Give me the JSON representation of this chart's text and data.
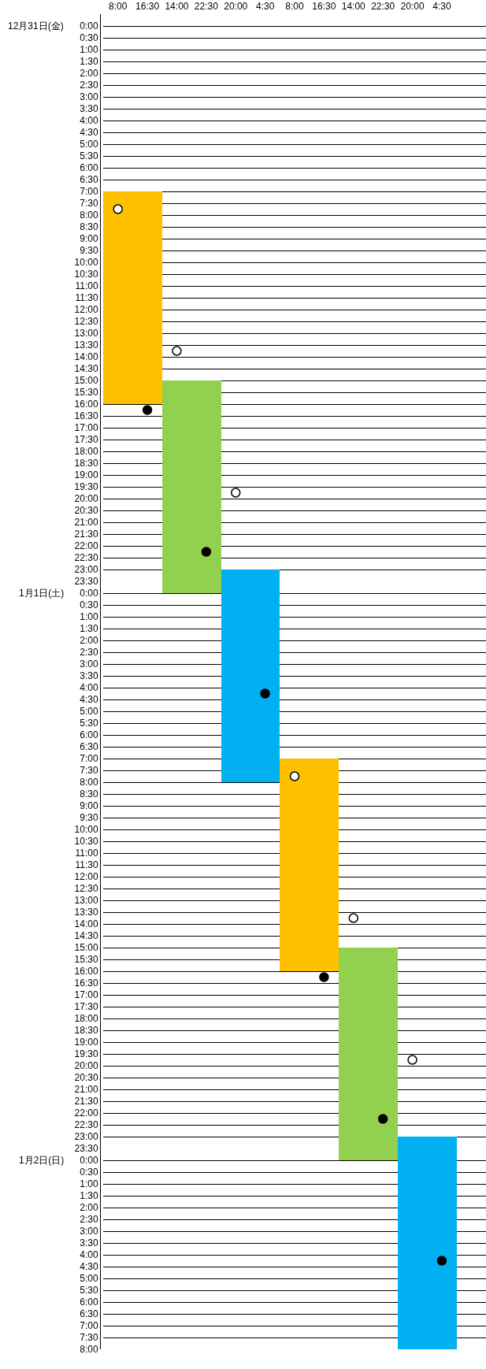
{
  "chart_data": [
    {
      "type": "bar",
      "title": "12月31日(金)",
      "categories": [
        "8:00",
        "16:30",
        "14:00",
        "22:30",
        "20:00",
        "4:30",
        "8:00",
        "16:30",
        "14:00",
        "22:30",
        "20:00",
        "4:30"
      ],
      "series": [
        {
          "values": [
            9,
            9,
            8.5,
            8.5,
            0.5,
            0.5,
            null,
            null,
            null,
            null,
            null,
            null
          ],
          "base": [
            7,
            7,
            15,
            15,
            23,
            23,
            null,
            null,
            null,
            null,
            null,
            null
          ],
          "colors": [
            "#ffc000",
            "#ffc000",
            "#92d050",
            "#92d050",
            "#00b0f0",
            "#00b0f0",
            "#ffc000",
            "#ffc000",
            "#92d050",
            "#92d050",
            "#00b0f0",
            "#00b0f0"
          ]
        },
        {
          "type": "scatter",
          "marker": "circle",
          "color": "#ffffff",
          "values": [
            7.75,
            null,
            13.75,
            null,
            19.75,
            null,
            null,
            null,
            null,
            null,
            null,
            null
          ]
        },
        {
          "type": "scatter",
          "marker": "circle",
          "color": "#000000",
          "values": [
            null,
            16.25,
            null,
            22.25,
            null,
            null,
            null,
            null,
            null,
            null,
            null,
            null
          ]
        }
      ],
      "ylim": [
        23.5,
        -0.5
      ],
      "yticks": [
        {
          "value": 0,
          "label": "0:00"
        },
        {
          "value": 0.5,
          "label": "0:30"
        },
        {
          "value": 1,
          "label": "1:00"
        },
        {
          "value": 1.5,
          "label": "1:30"
        },
        {
          "value": 2,
          "label": "2:00"
        },
        {
          "value": 2.5,
          "label": "2:30"
        },
        {
          "value": 3,
          "label": "3:00"
        },
        {
          "value": 3.5,
          "label": "3:30"
        },
        {
          "value": 4,
          "label": "4:00"
        },
        {
          "value": 4.5,
          "label": "4:30"
        },
        {
          "value": 5,
          "label": "5:00"
        },
        {
          "value": 5.5,
          "label": "5:30"
        },
        {
          "value": 6,
          "label": "6:00"
        },
        {
          "value": 6.5,
          "label": "6:30"
        },
        {
          "value": 7,
          "label": "7:00"
        },
        {
          "value": 7.5,
          "label": "7:30"
        },
        {
          "value": 8,
          "label": "8:00"
        },
        {
          "value": 8.5,
          "label": "8:30"
        },
        {
          "value": 9,
          "label": "9:00"
        },
        {
          "value": 9.5,
          "label": "9:30"
        },
        {
          "value": 10,
          "label": "10:00"
        },
        {
          "value": 10.5,
          "label": "10:30"
        },
        {
          "value": 11,
          "label": "11:00"
        },
        {
          "value": 11.5,
          "label": "11:30"
        },
        {
          "value": 12,
          "label": "12:00"
        },
        {
          "value": 12.5,
          "label": "12:30"
        },
        {
          "value": 13,
          "label": "13:00"
        },
        {
          "value": 13.5,
          "label": "13:30"
        },
        {
          "value": 14,
          "label": "14:00"
        },
        {
          "value": 14.5,
          "label": "14:30"
        },
        {
          "value": 15,
          "label": "15:00"
        },
        {
          "value": 15.5,
          "label": "15:30"
        },
        {
          "value": 16,
          "label": "16:00"
        },
        {
          "value": 16.5,
          "label": "16:30"
        },
        {
          "value": 17,
          "label": "17:00"
        },
        {
          "value": 17.5,
          "label": "17:30"
        },
        {
          "value": 18,
          "label": "18:00"
        },
        {
          "value": 18.5,
          "label": "18:30"
        },
        {
          "value": 19,
          "label": "19:00"
        },
        {
          "value": 19.5,
          "label": "19:30"
        },
        {
          "value": 20,
          "label": "20:00"
        },
        {
          "value": 20.5,
          "label": "20:30"
        },
        {
          "value": 21,
          "label": "21:00"
        },
        {
          "value": 21.5,
          "label": "21:30"
        },
        {
          "value": 22,
          "label": "22:00"
        },
        {
          "value": 22.5,
          "label": "22:30"
        },
        {
          "value": 23,
          "label": "23:00"
        },
        {
          "value": 23.5,
          "label": "23:30"
        }
      ],
      "grid": "y",
      "legend": false
    },
    {
      "type": "bar",
      "title": "1月1日(土)",
      "categories": [
        null,
        null,
        null,
        null,
        null,
        null,
        null,
        null,
        null,
        null,
        null,
        null
      ],
      "tick_labels": "y",
      "series": [
        {
          "values": [
            null,
            null,
            0.5,
            0.5,
            8.5,
            8.5,
            9,
            9,
            8.5,
            8.5,
            0.5,
            0.5
          ],
          "base": [
            null,
            null,
            -0.5,
            -0.5,
            -0.5,
            -0.5,
            7,
            7,
            15,
            15,
            23,
            23
          ],
          "colors": [
            "#ffc000",
            "#ffc000",
            "#92d050",
            "#92d050",
            "#00b0f0",
            "#00b0f0",
            "#ffc000",
            "#ffc000",
            "#92d050",
            "#92d050",
            "#00b0f0",
            "#00b0f0"
          ]
        },
        {
          "type": "scatter",
          "marker": "circle",
          "color": "#ffffff",
          "values": [
            null,
            null,
            null,
            null,
            null,
            null,
            7.75,
            null,
            13.75,
            null,
            19.75,
            null
          ]
        },
        {
          "type": "scatter",
          "marker": "circle",
          "color": "#000000",
          "values": [
            null,
            null,
            null,
            null,
            null,
            4.25,
            null,
            16.25,
            null,
            22.25,
            null,
            null
          ]
        }
      ],
      "ylim": [
        23.5,
        -0.5
      ],
      "yticks": [
        {
          "value": 0,
          "label": "0:00"
        },
        {
          "value": 0.5,
          "label": "0:30"
        },
        {
          "value": 1,
          "label": "1:00"
        },
        {
          "value": 1.5,
          "label": "1:30"
        },
        {
          "value": 2,
          "label": "2:00"
        },
        {
          "value": 2.5,
          "label": "2:30"
        },
        {
          "value": 3,
          "label": "3:00"
        },
        {
          "value": 3.5,
          "label": "3:30"
        },
        {
          "value": 4,
          "label": "4:00"
        },
        {
          "value": 4.5,
          "label": "4:30"
        },
        {
          "value": 5,
          "label": "5:00"
        },
        {
          "value": 5.5,
          "label": "5:30"
        },
        {
          "value": 6,
          "label": "6:00"
        },
        {
          "value": 6.5,
          "label": "6:30"
        },
        {
          "value": 7,
          "label": "7:00"
        },
        {
          "value": 7.5,
          "label": "7:30"
        },
        {
          "value": 8,
          "label": "8:00"
        },
        {
          "value": 8.5,
          "label": "8:30"
        },
        {
          "value": 9,
          "label": "9:00"
        },
        {
          "value": 9.5,
          "label": "9:30"
        },
        {
          "value": 10,
          "label": "10:00"
        },
        {
          "value": 10.5,
          "label": "10:30"
        },
        {
          "value": 11,
          "label": "11:00"
        },
        {
          "value": 11.5,
          "label": "11:30"
        },
        {
          "value": 12,
          "label": "12:00"
        },
        {
          "value": 12.5,
          "label": "12:30"
        },
        {
          "value": 13,
          "label": "13:00"
        },
        {
          "value": 13.5,
          "label": "13:30"
        },
        {
          "value": 14,
          "label": "14:00"
        },
        {
          "value": 14.5,
          "label": "14:30"
        },
        {
          "value": 15,
          "label": "15:00"
        },
        {
          "value": 15.5,
          "label": "15:30"
        },
        {
          "value": 16,
          "label": "16:00"
        },
        {
          "value": 16.5,
          "label": "16:30"
        },
        {
          "value": 17,
          "label": "17:00"
        },
        {
          "value": 17.5,
          "label": "17:30"
        },
        {
          "value": 18,
          "label": "18:00"
        },
        {
          "value": 18.5,
          "label": "18:30"
        },
        {
          "value": 19,
          "label": "19:00"
        },
        {
          "value": 19.5,
          "label": "19:30"
        },
        {
          "value": 20,
          "label": "20:00"
        },
        {
          "value": 20.5,
          "label": "20:30"
        },
        {
          "value": 21,
          "label": "21:00"
        },
        {
          "value": 21.5,
          "label": "21:30"
        },
        {
          "value": 22,
          "label": "22:00"
        },
        {
          "value": 22.5,
          "label": "22:30"
        },
        {
          "value": 23,
          "label": "23:00"
        },
        {
          "value": 23.5,
          "label": "23:30"
        }
      ],
      "grid": "y",
      "legend": false
    },
    {
      "type": "bar",
      "title": "1月2日(日)",
      "categories": [
        null,
        null,
        null,
        null,
        null,
        null,
        null,
        null,
        null,
        null,
        null,
        null
      ],
      "tick_labels": "y",
      "series": [
        {
          "values": [
            null,
            null,
            null,
            null,
            null,
            null,
            null,
            null,
            0.5,
            0.5,
            8.5,
            8.5
          ],
          "base": [
            null,
            null,
            null,
            null,
            null,
            null,
            null,
            null,
            -0.5,
            -0.5,
            -0.5,
            -0.5
          ],
          "colors": [
            "#ffc000",
            "#ffc000",
            "#92d050",
            "#92d050",
            "#00b0f0",
            "#00b0f0",
            "#ffc000",
            "#ffc000",
            "#92d050",
            "#92d050",
            "#00b0f0",
            "#00b0f0"
          ]
        },
        {
          "type": "scatter",
          "marker": "circle",
          "color": "#000000",
          "values": [
            null,
            null,
            null,
            null,
            null,
            null,
            null,
            null,
            null,
            null,
            null,
            4.25
          ]
        }
      ],
      "ylim": [
        8,
        -0.5
      ],
      "yticks": [
        {
          "value": 0,
          "label": "0:00"
        },
        {
          "value": 0.5,
          "label": "0:30"
        },
        {
          "value": 1,
          "label": "1:00"
        },
        {
          "value": 1.5,
          "label": "1:30"
        },
        {
          "value": 2,
          "label": "2:00"
        },
        {
          "value": 2.5,
          "label": "2:30"
        },
        {
          "value": 3,
          "label": "3:00"
        },
        {
          "value": 3.5,
          "label": "3:30"
        },
        {
          "value": 4,
          "label": "4:00"
        },
        {
          "value": 4.5,
          "label": "4:30"
        },
        {
          "value": 5,
          "label": "5:00"
        },
        {
          "value": 5.5,
          "label": "5:30"
        },
        {
          "value": 6,
          "label": "6:00"
        },
        {
          "value": 6.5,
          "label": "6:30"
        },
        {
          "value": 7,
          "label": "7:00"
        },
        {
          "value": 7.5,
          "label": "7:30"
        },
        {
          "value": 8,
          "label": "8:00"
        }
      ],
      "grid": "y",
      "legend": false
    }
  ]
}
